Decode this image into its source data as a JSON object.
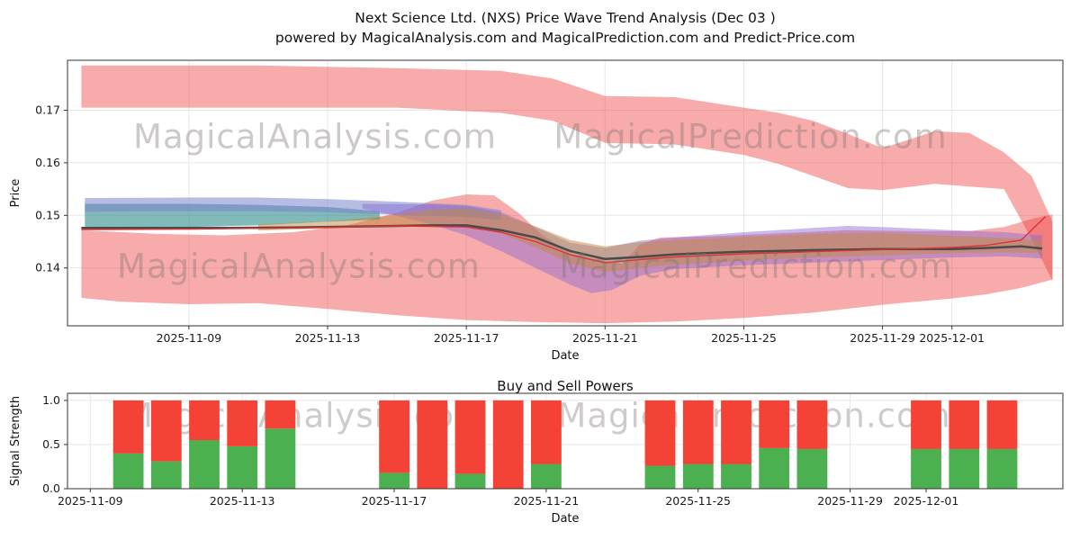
{
  "title": {
    "line1": "Next Science Ltd. (NXS) Price Wave Trend Analysis (Dec 03 )",
    "line2": "powered by MagicalAnalysis.com and MagicalPrediction.com and Predict-Price.com"
  },
  "watermarks": {
    "analysis": "MagicalAnalysis.com",
    "prediction": "MagicalPrediction.com"
  },
  "chart_data": [
    {
      "type": "area",
      "title": "Next Science Ltd. (NXS) Price Wave Trend Analysis (Dec 03 )",
      "subtitle": "powered by MagicalAnalysis.com and MagicalPrediction.com and Predict-Price.com",
      "xlabel": "Date",
      "ylabel": "Price",
      "x_unit": "days since 2025-11-05",
      "xlim": [
        0.5,
        29.2
      ],
      "ylim": [
        0.129,
        0.1795
      ],
      "grid": true,
      "xticks": {
        "positions": [
          4,
          8,
          12,
          16,
          20,
          24,
          26
        ],
        "labels": [
          "2025-11-09",
          "2025-11-13",
          "2025-11-17",
          "2025-11-21",
          "2025-11-25",
          "2025-11-29",
          "2025-12-01"
        ]
      },
      "yticks": {
        "positions": [
          0.14,
          0.15,
          0.16,
          0.17
        ],
        "labels": [
          "0.14",
          "0.15",
          "0.16",
          "0.17"
        ]
      },
      "bands": [
        {
          "name": "upper-forecast-red",
          "color": "#ee4444",
          "opacity": 0.45,
          "upper": [
            [
              0.9,
              0.1785
            ],
            [
              6,
              0.1785
            ],
            [
              10,
              0.178
            ],
            [
              13,
              0.1775
            ],
            [
              14.5,
              0.176
            ],
            [
              16,
              0.1727
            ],
            [
              18,
              0.1725
            ],
            [
              20,
              0.1705
            ],
            [
              21,
              0.1695
            ],
            [
              22,
              0.168
            ],
            [
              23,
              0.1655
            ],
            [
              24,
              0.1628
            ],
            [
              25.5,
              0.166
            ],
            [
              26.5,
              0.1657
            ],
            [
              27.5,
              0.162
            ],
            [
              28.3,
              0.1575
            ],
            [
              28.9,
              0.1488
            ]
          ],
          "lower": [
            [
              28.9,
              0.1375
            ],
            [
              28.3,
              0.1455
            ],
            [
              27.5,
              0.155
            ],
            [
              26.5,
              0.1555
            ],
            [
              25.5,
              0.156
            ],
            [
              24,
              0.1548
            ],
            [
              23,
              0.1552
            ],
            [
              22,
              0.1575
            ],
            [
              21,
              0.1598
            ],
            [
              20,
              0.1615
            ],
            [
              18,
              0.1635
            ],
            [
              16,
              0.1638
            ],
            [
              14.5,
              0.168
            ],
            [
              13,
              0.1695
            ],
            [
              10,
              0.1705
            ],
            [
              6,
              0.1705
            ],
            [
              0.9,
              0.1705
            ]
          ]
        },
        {
          "name": "lower-forecast-red",
          "color": "#ee4444",
          "opacity": 0.45,
          "upper": [
            [
              0.9,
              0.1472
            ],
            [
              3,
              0.1465
            ],
            [
              5,
              0.1462
            ],
            [
              7,
              0.1468
            ],
            [
              8.5,
              0.148
            ],
            [
              10,
              0.1505
            ],
            [
              11,
              0.1528
            ],
            [
              12,
              0.154
            ],
            [
              12.8,
              0.1538
            ],
            [
              13.5,
              0.1505
            ],
            [
              14.2,
              0.1462
            ],
            [
              15,
              0.1428
            ],
            [
              15.8,
              0.1415
            ],
            [
              16.5,
              0.1408
            ],
            [
              17,
              0.1445
            ],
            [
              17.6,
              0.1458
            ],
            [
              19,
              0.146
            ],
            [
              21,
              0.1466
            ],
            [
              23,
              0.1472
            ],
            [
              25,
              0.147
            ],
            [
              26.5,
              0.147
            ],
            [
              27.5,
              0.1478
            ],
            [
              28.4,
              0.1495
            ],
            [
              28.9,
              0.1502
            ]
          ],
          "lower": [
            [
              28.9,
              0.1378
            ],
            [
              28,
              0.1362
            ],
            [
              27,
              0.135
            ],
            [
              26,
              0.1342
            ],
            [
              24,
              0.133
            ],
            [
              22,
              0.1315
            ],
            [
              20,
              0.1305
            ],
            [
              18,
              0.1298
            ],
            [
              16,
              0.1295
            ],
            [
              14,
              0.1297
            ],
            [
              12,
              0.1301
            ],
            [
              10,
              0.131
            ],
            [
              8,
              0.1322
            ],
            [
              6,
              0.1333
            ],
            [
              4,
              0.1331
            ],
            [
              2,
              0.1336
            ],
            [
              0.9,
              0.1343
            ]
          ]
        },
        {
          "name": "teal-wave",
          "color": "#2e8b8b",
          "opacity": 0.6,
          "upper": [
            [
              1,
              0.1522
            ],
            [
              4,
              0.1522
            ],
            [
              6,
              0.152
            ],
            [
              8,
              0.1516
            ],
            [
              9.5,
              0.1508
            ]
          ],
          "lower": [
            [
              9.5,
              0.1492
            ],
            [
              8,
              0.1488
            ],
            [
              6,
              0.1481
            ],
            [
              4,
              0.1478
            ],
            [
              1,
              0.1476
            ]
          ]
        },
        {
          "name": "slate-blue-wave",
          "color": "#7b85cc",
          "opacity": 0.55,
          "upper": [
            [
              1,
              0.1533
            ],
            [
              4,
              0.1534
            ],
            [
              6,
              0.1534
            ],
            [
              8,
              0.1531
            ],
            [
              10,
              0.1526
            ],
            [
              12,
              0.152
            ],
            [
              13,
              0.151
            ]
          ],
          "lower": [
            [
              13,
              0.1491
            ],
            [
              12,
              0.1497
            ],
            [
              10,
              0.1501
            ],
            [
              8,
              0.1506
            ],
            [
              6,
              0.1508
            ],
            [
              4,
              0.1508
            ],
            [
              1,
              0.1507
            ]
          ]
        },
        {
          "name": "purple-wave",
          "color": "#8766d2",
          "opacity": 0.45,
          "upper": [
            [
              9,
              0.1522
            ],
            [
              11,
              0.1521
            ],
            [
              12,
              0.1518
            ],
            [
              13,
              0.1506
            ],
            [
              14,
              0.1478
            ],
            [
              15,
              0.1448
            ],
            [
              16,
              0.1438
            ],
            [
              17,
              0.1452
            ],
            [
              18,
              0.1458
            ],
            [
              20,
              0.1468
            ],
            [
              22,
              0.1476
            ],
            [
              23,
              0.148
            ],
            [
              24,
              0.1478
            ],
            [
              26,
              0.1472
            ],
            [
              27.5,
              0.1468
            ],
            [
              28.6,
              0.1462
            ]
          ],
          "lower": [
            [
              28.6,
              0.1418
            ],
            [
              27.5,
              0.1422
            ],
            [
              26,
              0.142
            ],
            [
              24,
              0.1415
            ],
            [
              22,
              0.141
            ],
            [
              20,
              0.1405
            ],
            [
              18,
              0.1398
            ],
            [
              17,
              0.1385
            ],
            [
              16.2,
              0.1358
            ],
            [
              15.6,
              0.1352
            ],
            [
              15,
              0.1368
            ],
            [
              14,
              0.14
            ],
            [
              13,
              0.1432
            ],
            [
              12,
              0.1462
            ],
            [
              11,
              0.1483
            ],
            [
              10,
              0.1499
            ],
            [
              9,
              0.1513
            ]
          ]
        },
        {
          "name": "orange-wave",
          "color": "#c08a3e",
          "opacity": 0.5,
          "upper": [
            [
              6,
              0.1483
            ],
            [
              8,
              0.1489
            ],
            [
              10,
              0.1501
            ],
            [
              11,
              0.1511
            ],
            [
              12,
              0.1513
            ],
            [
              13,
              0.1503
            ],
            [
              14,
              0.1479
            ],
            [
              15,
              0.1453
            ],
            [
              16,
              0.1441
            ],
            [
              17,
              0.1449
            ],
            [
              18,
              0.1453
            ],
            [
              20,
              0.1459
            ],
            [
              22,
              0.1465
            ],
            [
              24,
              0.1467
            ],
            [
              26,
              0.1461
            ],
            [
              27.5,
              0.1457
            ],
            [
              28.6,
              0.1453
            ]
          ],
          "lower": [
            [
              28.6,
              0.1428
            ],
            [
              27.5,
              0.143
            ],
            [
              26,
              0.1428
            ],
            [
              24,
              0.1424
            ],
            [
              22,
              0.142
            ],
            [
              20,
              0.1414
            ],
            [
              18,
              0.1406
            ],
            [
              17,
              0.14
            ],
            [
              16,
              0.1392
            ],
            [
              15,
              0.1409
            ],
            [
              14,
              0.1439
            ],
            [
              13,
              0.1466
            ],
            [
              12,
              0.1479
            ],
            [
              11,
              0.1483
            ],
            [
              10,
              0.1481
            ],
            [
              8,
              0.1475
            ],
            [
              6,
              0.1471
            ]
          ]
        }
      ],
      "lines": [
        {
          "name": "trend-dark",
          "color": "#4a4a4a",
          "width": 2.5,
          "points": [
            [
              0.9,
              0.1476
            ],
            [
              3,
              0.1476
            ],
            [
              5,
              0.1476
            ],
            [
              7,
              0.1477
            ],
            [
              9,
              0.1479
            ],
            [
              11,
              0.1481
            ],
            [
              12,
              0.1481
            ],
            [
              13,
              0.1472
            ],
            [
              14,
              0.1458
            ],
            [
              15,
              0.1432
            ],
            [
              16,
              0.1417
            ],
            [
              17,
              0.1421
            ],
            [
              18,
              0.1426
            ],
            [
              20,
              0.1431
            ],
            [
              22,
              0.1434
            ],
            [
              24,
              0.1436
            ],
            [
              26,
              0.1436
            ],
            [
              27,
              0.1438
            ],
            [
              28,
              0.1441
            ],
            [
              28.6,
              0.1437
            ]
          ]
        },
        {
          "name": "trend-red",
          "color": "#dd3333",
          "width": 1.4,
          "points": [
            [
              0.9,
              0.1473
            ],
            [
              4,
              0.1474
            ],
            [
              7,
              0.1476
            ],
            [
              10,
              0.148
            ],
            [
              12,
              0.1478
            ],
            [
              13,
              0.1468
            ],
            [
              14,
              0.145
            ],
            [
              15,
              0.1425
            ],
            [
              16,
              0.141
            ],
            [
              17,
              0.1416
            ],
            [
              18,
              0.1421
            ],
            [
              20,
              0.1427
            ],
            [
              22,
              0.1431
            ],
            [
              24,
              0.1435
            ],
            [
              26,
              0.1439
            ],
            [
              27,
              0.1443
            ],
            [
              28,
              0.1453
            ],
            [
              28.7,
              0.1498
            ]
          ]
        }
      ]
    },
    {
      "type": "bar",
      "title": "Buy and Sell Powers",
      "xlabel": "Date",
      "ylabel": "Signal Strength",
      "x_unit": "days since 2025-11-05",
      "xlim": [
        3.4,
        29.6
      ],
      "ylim": [
        0,
        1.08
      ],
      "grid": true,
      "stacked": true,
      "bar_width_days": 0.8,
      "xticks": {
        "positions": [
          4,
          8,
          12,
          16,
          20,
          24,
          26
        ],
        "labels": [
          "2025-11-09",
          "2025-11-13",
          "2025-11-17",
          "2025-11-21",
          "2025-11-25",
          "2025-11-29",
          "2025-12-01"
        ]
      },
      "yticks": {
        "positions": [
          0,
          0.5,
          1
        ],
        "labels": [
          "0.0",
          "0.5",
          "1.0"
        ]
      },
      "categories": [
        "2025-11-10",
        "2025-11-11",
        "2025-11-12",
        "2025-11-13",
        "2025-11-14",
        "2025-11-17",
        "2025-11-18",
        "2025-11-19",
        "2025-11-20",
        "2025-11-21",
        "2025-11-24",
        "2025-11-25",
        "2025-11-26",
        "2025-11-27",
        "2025-11-28",
        "2025-12-01",
        "2025-12-02",
        "2025-12-03"
      ],
      "x": [
        5,
        6,
        7,
        8,
        9,
        12,
        13,
        14,
        15,
        16,
        19,
        20,
        21,
        22,
        23,
        26,
        27,
        28
      ],
      "series": [
        {
          "name": "Buy",
          "color": "#4caf50",
          "values": [
            0.4,
            0.31,
            0.55,
            0.48,
            0.68,
            0.18,
            0.0,
            0.17,
            0.0,
            0.28,
            0.26,
            0.28,
            0.28,
            0.46,
            0.45,
            0.45,
            0.45,
            0.45
          ]
        },
        {
          "name": "Sell",
          "color": "#f44336",
          "values": [
            0.6,
            0.69,
            0.45,
            0.52,
            0.32,
            0.82,
            1.0,
            0.83,
            1.0,
            0.72,
            0.74,
            0.72,
            0.72,
            0.54,
            0.55,
            0.55,
            0.55,
            0.55
          ]
        }
      ]
    }
  ]
}
